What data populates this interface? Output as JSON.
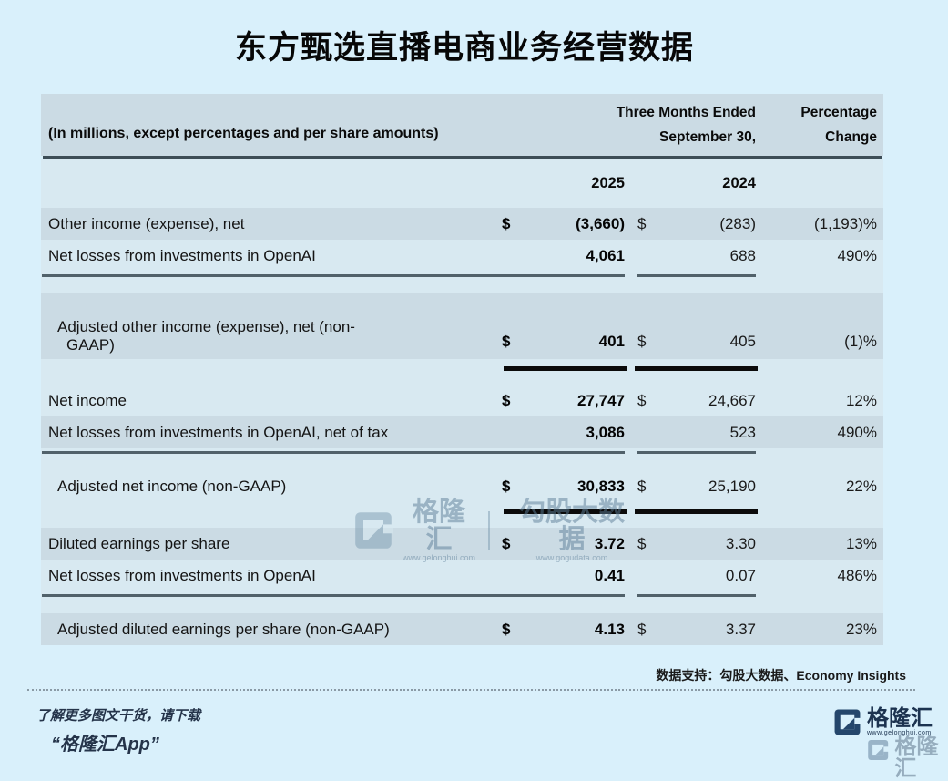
{
  "title": "东方甄选直播电商业务经营数据",
  "table": {
    "caption": "(In millions, except percentages and per share amounts)",
    "period_header_line1": "Three Months Ended",
    "period_header_line2": "September 30,",
    "pct_header_line1": "Percentage",
    "pct_header_line2": "Change",
    "year_2025": "2025",
    "year_2024": "2024",
    "rows": [
      {
        "label": "Other income (expense), net",
        "dollar1": "$",
        "v2025": "(3,660)",
        "dollar2": "$",
        "v2024": "(283)",
        "pct": "(1,193)%",
        "shade": "gray",
        "indent": false,
        "rule_after": "none"
      },
      {
        "label": "Net losses from investments in OpenAI",
        "dollar1": "",
        "v2025": "4,061",
        "dollar2": "",
        "v2024": "688",
        "pct": "490%",
        "shade": "light",
        "indent": false,
        "rule_after": "thin"
      },
      {
        "label": "Adjusted other income (expense), net (non-",
        "label_line2": "GAAP)",
        "dollar1": "$",
        "v2025": "401",
        "dollar2": "$",
        "v2024": "405",
        "pct": "(1)%",
        "shade": "gray",
        "indent": true,
        "rule_after": "thick"
      },
      {
        "label": "Net income",
        "dollar1": "$",
        "v2025": "27,747",
        "dollar2": "$",
        "v2024": "24,667",
        "pct": "12%",
        "shade": "light",
        "indent": false,
        "rule_after": "none"
      },
      {
        "label": "Net losses from investments in OpenAI, net of tax",
        "dollar1": "",
        "v2025": "3,086",
        "dollar2": "",
        "v2024": "523",
        "pct": "490%",
        "shade": "gray",
        "indent": false,
        "rule_after": "thin"
      },
      {
        "label": "Adjusted net income (non-GAAP)",
        "dollar1": "$",
        "v2025": "30,833",
        "dollar2": "$",
        "v2024": "25,190",
        "pct": "22%",
        "shade": "light",
        "indent": true,
        "rule_after": "thick"
      },
      {
        "label": "Diluted earnings per share",
        "dollar1": "$",
        "v2025": "3.72",
        "dollar2": "$",
        "v2024": "3.30",
        "pct": "13%",
        "shade": "gray",
        "indent": false,
        "rule_after": "none"
      },
      {
        "label": "Net losses from investments in OpenAI",
        "dollar1": "",
        "v2025": "0.41",
        "dollar2": "",
        "v2024": "0.07",
        "pct": "486%",
        "shade": "light",
        "indent": false,
        "rule_after": "thin"
      },
      {
        "label": "Adjusted diluted earnings per share (non-GAAP)",
        "dollar1": "$",
        "v2025": "4.13",
        "dollar2": "$",
        "v2024": "3.37",
        "pct": "23%",
        "shade": "gray",
        "indent": true,
        "rule_after": "none"
      }
    ]
  },
  "watermark": {
    "brand": "格隆汇",
    "brand_url": "www.gelonghui.com",
    "data_brand": "勾股大数据",
    "data_brand_url": "www.gogudata.com"
  },
  "footer": {
    "support_line": "数据支持：勾股大数据、Economy Insights",
    "promo_line1": "了解更多图文干货，请下载",
    "promo_line2": "“格隆汇App”",
    "logo_text": "格隆汇",
    "logo_url": "www.gelonghui.com"
  },
  "colors": {
    "page_background": "#d9f0fb",
    "row_gray": "#cbdbe4",
    "row_light": "#d8e9f1",
    "rule_dark": "#3d4d56",
    "rule_black": "#0b0b0b",
    "brand_navy": "#24466b"
  }
}
